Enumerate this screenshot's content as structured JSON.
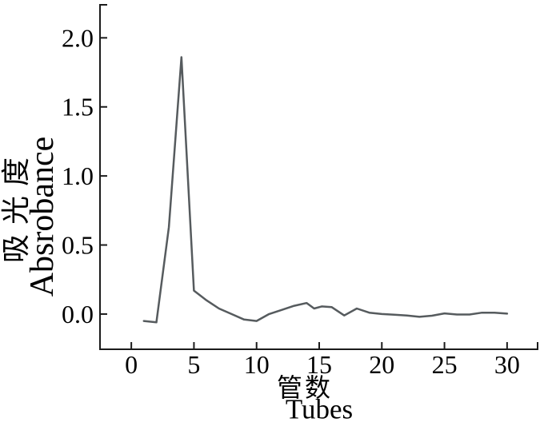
{
  "chart_data": {
    "type": "line",
    "title": "",
    "xlabel_zh": "管数",
    "xlabel_en": "Tubes",
    "ylabel_zh": "吸光度",
    "ylabel_en": "Absrobance",
    "x_tick_values": [
      0,
      5,
      10,
      15,
      20,
      25,
      30
    ],
    "x_tick_labels": [
      "0",
      "5",
      "10",
      "15",
      "20",
      "25",
      "30"
    ],
    "y_tick_values": [
      0,
      0.5,
      1,
      1.5,
      2
    ],
    "y_tick_labels": [
      "0.0",
      "0.5",
      "1.0",
      "1.5",
      "2.0"
    ],
    "xlim": [
      -2.5,
      32.5
    ],
    "ylim": [
      -0.255,
      2.245
    ],
    "grid": false,
    "legend": false,
    "axis_end_ticks": true,
    "line_color": "#565b5e",
    "axis_color": "#1b1b1b",
    "series": [
      {
        "name": "absorbance",
        "points": [
          [
            1,
            -0.05
          ],
          [
            2,
            -0.06
          ],
          [
            3,
            0.63
          ],
          [
            4,
            1.86
          ],
          [
            5,
            0.17
          ],
          [
            6,
            0.1
          ],
          [
            7,
            0.04
          ],
          [
            8,
            0.0
          ],
          [
            9,
            -0.04
          ],
          [
            10,
            -0.05
          ],
          [
            11,
            0.0
          ],
          [
            12,
            0.03
          ],
          [
            13,
            0.06
          ],
          [
            14,
            0.08
          ],
          [
            14.6,
            0.04
          ],
          [
            15.2,
            0.055
          ],
          [
            16,
            0.05
          ],
          [
            17,
            -0.01
          ],
          [
            18,
            0.04
          ],
          [
            19,
            0.01
          ],
          [
            20,
            0.0
          ],
          [
            21,
            -0.005
          ],
          [
            22,
            -0.01
          ],
          [
            23,
            -0.02
          ],
          [
            24,
            -0.012
          ],
          [
            25,
            0.005
          ],
          [
            26,
            -0.003
          ],
          [
            27,
            -0.003
          ],
          [
            28,
            0.01
          ],
          [
            29,
            0.01
          ],
          [
            30,
            0.003
          ]
        ]
      }
    ]
  }
}
